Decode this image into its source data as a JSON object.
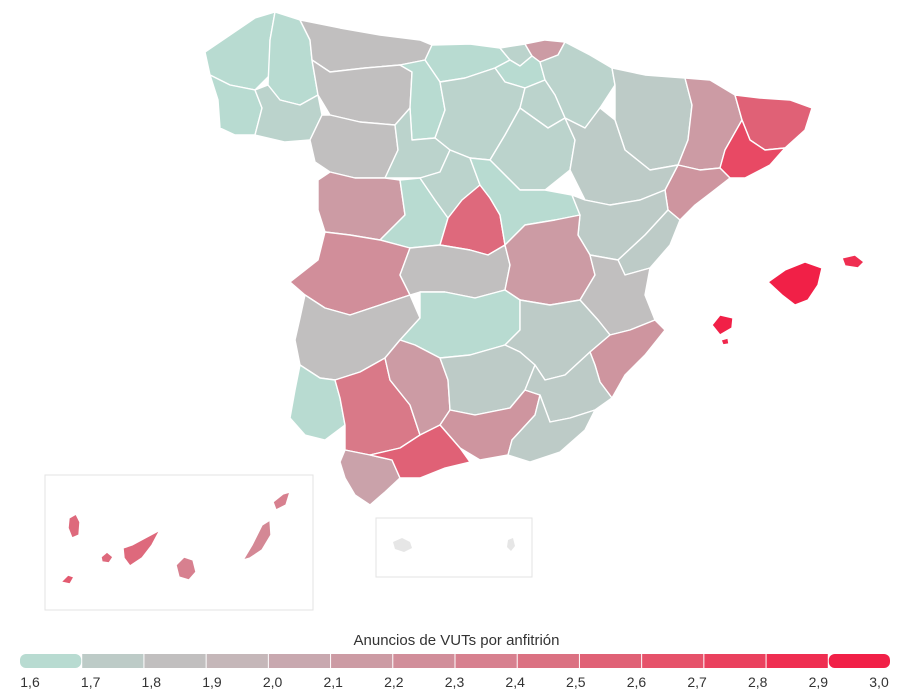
{
  "legend": {
    "title": "Anuncios de VUTs por anfitrión",
    "ticks": [
      "1,6",
      "1,7",
      "1,8",
      "1,9",
      "2,0",
      "2,1",
      "2,2",
      "2,3",
      "2,4",
      "2,5",
      "2,6",
      "2,7",
      "2,8",
      "2,9",
      "3,0"
    ],
    "min": 1.6,
    "max": 3.0,
    "colors": [
      "#b5e3d7",
      "#bcd0ca",
      "#c0c0c0",
      "#c5b7b9",
      "#c9a6ad",
      "#cd97a1",
      "#d48895",
      "#da7686",
      "#df6478",
      "#e6526a",
      "#eb3e5c",
      "#f0284d",
      "#f21a43"
    ]
  },
  "regions": [
    {
      "name": "A Coruña",
      "value": 1.65
    },
    {
      "name": "Lugo",
      "value": 1.65
    },
    {
      "name": "Pontevedra",
      "value": 1.65
    },
    {
      "name": "Ourense",
      "value": 1.7
    },
    {
      "name": "Asturias",
      "value": 1.85
    },
    {
      "name": "Cantabria",
      "value": 1.65
    },
    {
      "name": "Bizkaia",
      "value": 1.7
    },
    {
      "name": "Gipuzkoa",
      "value": 2.15
    },
    {
      "name": "Araba",
      "value": 1.65
    },
    {
      "name": "Navarra",
      "value": 1.7
    },
    {
      "name": "León",
      "value": 1.85
    },
    {
      "name": "Palencia",
      "value": 1.65
    },
    {
      "name": "Burgos",
      "value": 1.7
    },
    {
      "name": "La Rioja",
      "value": 1.7
    },
    {
      "name": "Zamora",
      "value": 1.85
    },
    {
      "name": "Valladolid",
      "value": 1.7
    },
    {
      "name": "Soria",
      "value": 1.7
    },
    {
      "name": "Huesca",
      "value": 1.75
    },
    {
      "name": "Lleida",
      "value": 2.15
    },
    {
      "name": "Girona",
      "value": 2.55
    },
    {
      "name": "Barcelona",
      "value": 2.7
    },
    {
      "name": "Tarragona",
      "value": 2.2
    },
    {
      "name": "Zaragoza",
      "value": 1.75
    },
    {
      "name": "Salamanca",
      "value": 2.15
    },
    {
      "name": "Ávila",
      "value": 1.65
    },
    {
      "name": "Segovia",
      "value": 1.7
    },
    {
      "name": "Madrid",
      "value": 2.5
    },
    {
      "name": "Guadalajara",
      "value": 1.65
    },
    {
      "name": "Teruel",
      "value": 1.75
    },
    {
      "name": "Castellón",
      "value": 1.75
    },
    {
      "name": "Cáceres",
      "value": 2.25
    },
    {
      "name": "Toledo",
      "value": 1.85
    },
    {
      "name": "Cuenca",
      "value": 2.15
    },
    {
      "name": "Valencia",
      "value": 1.85
    },
    {
      "name": "Badajoz",
      "value": 1.85
    },
    {
      "name": "Ciudad Real",
      "value": 1.65
    },
    {
      "name": "Albacete",
      "value": 1.75
    },
    {
      "name": "Alicante",
      "value": 2.2
    },
    {
      "name": "Huelva",
      "value": 1.65
    },
    {
      "name": "Sevilla",
      "value": 2.4
    },
    {
      "name": "Córdoba",
      "value": 2.15
    },
    {
      "name": "Jaén",
      "value": 1.75
    },
    {
      "name": "Granada",
      "value": 2.2
    },
    {
      "name": "Murcia",
      "value": 1.75
    },
    {
      "name": "Almería",
      "value": 1.75
    },
    {
      "name": "Cádiz",
      "value": 2.1
    },
    {
      "name": "Málaga",
      "value": 2.55
    },
    {
      "name": "Mallorca",
      "value": 2.95
    },
    {
      "name": "Menorca",
      "value": 2.85
    },
    {
      "name": "Ibiza",
      "value": 2.95
    },
    {
      "name": "Formentera",
      "value": 2.9
    },
    {
      "name": "La Palma",
      "value": 2.5
    },
    {
      "name": "La Gomera",
      "value": 2.5
    },
    {
      "name": "El Hierro",
      "value": 2.6
    },
    {
      "name": "Tenerife",
      "value": 2.5
    },
    {
      "name": "Gran Canaria",
      "value": 2.35
    },
    {
      "name": "Fuerteventura",
      "value": 2.3
    },
    {
      "name": "Lanzarote",
      "value": 2.35
    }
  ]
}
